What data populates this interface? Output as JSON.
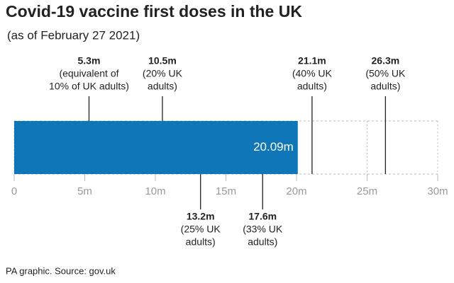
{
  "chart_data": {
    "type": "bar",
    "orientation": "horizontal",
    "title": "Covid-19 vaccine first doses in the UK",
    "subtitle": "(as of February 27 2021)",
    "source": "PA graphic. Source: gov.uk",
    "values": [
      20.09
    ],
    "value_labels": [
      "20.09m"
    ],
    "color": "#0f77b8",
    "xlim": [
      0,
      30
    ],
    "xticks": [
      0,
      {
        "value": 5,
        "label": "5m"
      },
      {
        "value": 10,
        "label": "10m"
      },
      {
        "value": 15,
        "label": "15m"
      },
      {
        "value": 20,
        "label": "20m"
      },
      {
        "value": 25,
        "label": "25m"
      },
      {
        "value": 30,
        "label": "30m"
      }
    ],
    "annotations": [
      {
        "value": 5.3,
        "label": "5.3m",
        "note": [
          "(equivalent of",
          "10% of UK adults)"
        ],
        "position": "above"
      },
      {
        "value": 10.5,
        "label": "10.5m",
        "note": [
          "(20% UK",
          "adults)"
        ],
        "position": "above"
      },
      {
        "value": 13.2,
        "label": "13.2m",
        "note": [
          "(25% UK",
          "adults)"
        ],
        "position": "below"
      },
      {
        "value": 17.6,
        "label": "17.6m",
        "note": [
          "(33% UK",
          "adults)"
        ],
        "position": "below"
      },
      {
        "value": 21.1,
        "label": "21.1m",
        "note": [
          "(40% UK",
          "adults)"
        ],
        "position": "above"
      },
      {
        "value": 26.3,
        "label": "26.3m",
        "note": [
          "(50% UK",
          "adults)"
        ],
        "position": "above"
      }
    ]
  }
}
